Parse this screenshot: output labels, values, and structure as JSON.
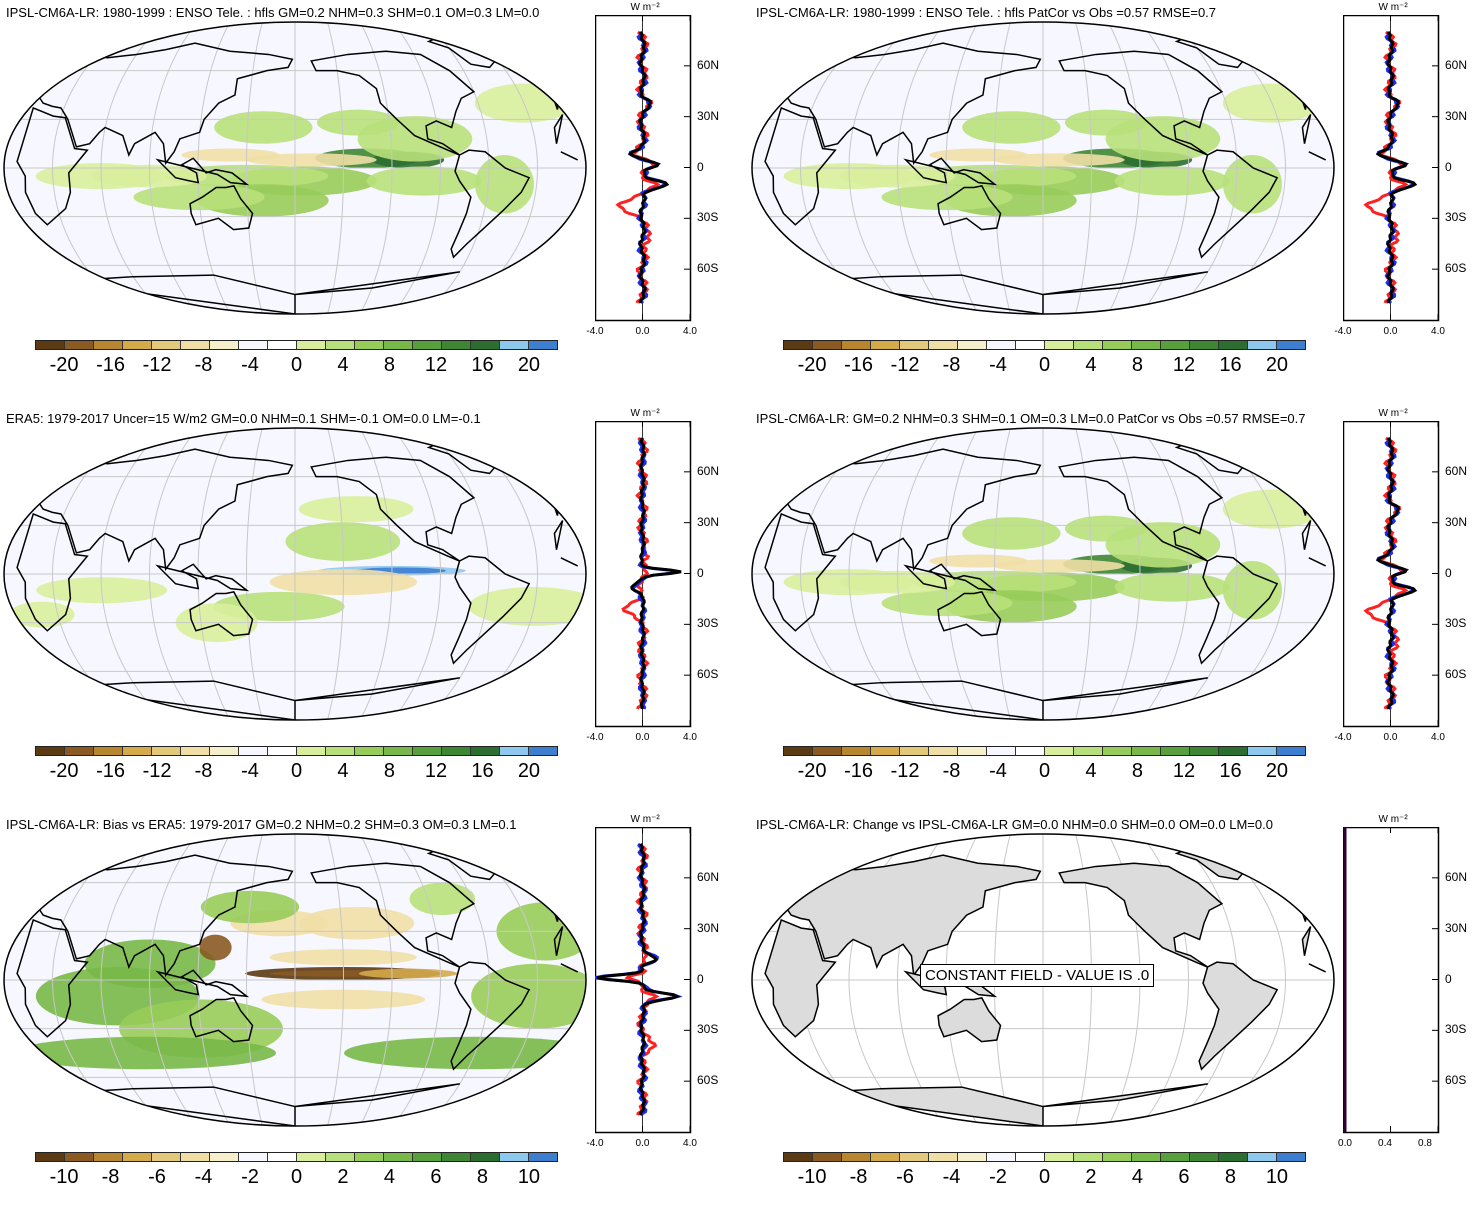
{
  "panels": [
    {
      "title": "IPSL-CM6A-LR: 1980-1999 : ENSO Tele. : hfls GM=0.2 NHM=0.3 SHM=0.1 OM=0.3 LM=0.0",
      "colorbar_labels": [
        "-20",
        "-16",
        "-12",
        "-8",
        "-4",
        "0",
        "4",
        "8",
        "12",
        "16",
        "20"
      ],
      "zonal_xticks": [
        "-4.0",
        "0.0",
        "4.0"
      ]
    },
    {
      "title": "IPSL-CM6A-LR: 1980-1999 : ENSO Tele. : hfls PatCor vs Obs =0.57 RMSE=0.7",
      "colorbar_labels": [
        "-20",
        "-16",
        "-12",
        "-8",
        "-4",
        "0",
        "4",
        "8",
        "12",
        "16",
        "20"
      ],
      "zonal_xticks": [
        "-4.0",
        "0.0",
        "4.0"
      ]
    },
    {
      "title": "ERA5: 1979-2017 Uncer=15 W/m2 GM=0.0 NHM=0.1 SHM=-0.1 OM=0.0 LM=-0.1",
      "colorbar_labels": [
        "-20",
        "-16",
        "-12",
        "-8",
        "-4",
        "0",
        "4",
        "8",
        "12",
        "16",
        "20"
      ],
      "zonal_xticks": [
        "-4.0",
        "0.0",
        "4.0"
      ]
    },
    {
      "title": "IPSL-CM6A-LR: GM=0.2 NHM=0.3 SHM=0.1 OM=0.3 LM=0.0 PatCor vs Obs =0.57 RMSE=0.7",
      "colorbar_labels": [
        "-20",
        "-16",
        "-12",
        "-8",
        "-4",
        "0",
        "4",
        "8",
        "12",
        "16",
        "20"
      ],
      "zonal_xticks": [
        "-4.0",
        "0.0",
        "4.0"
      ]
    },
    {
      "title": "IPSL-CM6A-LR: Bias vs ERA5: 1979-2017 GM=0.2 NHM=0.2 SHM=0.3 OM=0.3 LM=0.1",
      "colorbar_labels": [
        "-10",
        "-8",
        "-6",
        "-4",
        "-2",
        "0",
        "2",
        "4",
        "6",
        "8",
        "10"
      ],
      "zonal_xticks": [
        "-4.0",
        "0.0",
        "4.0"
      ]
    },
    {
      "title": "IPSL-CM6A-LR: Change vs IPSL-CM6A-LR GM=0.0 NHM=0.0 SHM=0.0 OM=0.0 LM=0.0",
      "colorbar_labels": [
        "-10",
        "-8",
        "-6",
        "-4",
        "-2",
        "0",
        "2",
        "4",
        "6",
        "8",
        "10"
      ],
      "zonal_xticks": [
        "0.0",
        "0.4",
        "0.8"
      ],
      "constant_field": "CONSTANT FIELD - VALUE IS .0"
    }
  ],
  "zonal_units": "W m⁻²",
  "lat_labels": [
    "60N",
    "30N",
    "0",
    "30S",
    "60S"
  ],
  "colors": {
    "palette": [
      "#5b3a14",
      "#8a5a22",
      "#b8862e",
      "#d4aa4a",
      "#e2c878",
      "#efdfa6",
      "#f6efcc",
      "#f7f7ff",
      "#ffffff",
      "#d8ee9c",
      "#b8e07a",
      "#98cc5a",
      "#78b848",
      "#58a03e",
      "#3e8634",
      "#2b6e30",
      "#8ec8ef",
      "#3d7ed0"
    ],
    "model_line": "#ff2020",
    "obs_line": "#1a2cf0",
    "mean_line": "#000000"
  }
}
